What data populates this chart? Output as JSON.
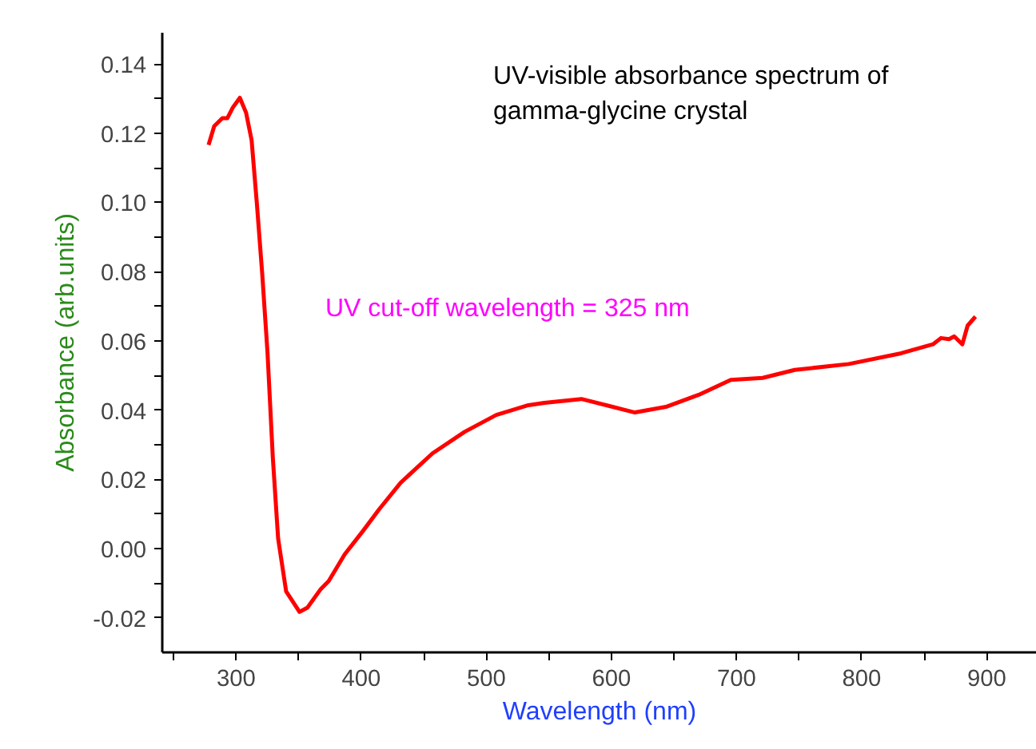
{
  "chart_data": {
    "type": "line",
    "title": "UV-visible absorbance spectrum of\ngamma-glycine crystal",
    "xlabel": "Wavelength (nm)",
    "ylabel": "Absorbance (arb.units)",
    "annotations": [
      "UV cut-off wavelength = 325 nm"
    ],
    "x": [
      278.0,
      282.5,
      289.0,
      293.0,
      297.4,
      303.0,
      308.0,
      312.4,
      316.6,
      320.8,
      325.1,
      329.4,
      333.6,
      340.0,
      350.7,
      357.0,
      367.7,
      374.0,
      386.8,
      401.7,
      414.5,
      431.5,
      457.0,
      482.6,
      508.0,
      533.6,
      546.4,
      576.0,
      618.8,
      644.3,
      669.8,
      695.4,
      720.9,
      746.5,
      789.7,
      831.5,
      857.0,
      863.4,
      869.8,
      874.0,
      880.5,
      884.7,
      891.0
    ],
    "series": [
      {
        "color": "#ff0000",
        "values": [
          0.1166,
          0.122,
          0.1243,
          0.1243,
          0.1274,
          0.1302,
          0.1259,
          0.118,
          0.0997,
          0.0798,
          0.0567,
          0.026,
          0.0029,
          -0.0124,
          -0.0183,
          -0.0171,
          -0.0117,
          -0.0094,
          -0.0017,
          0.0052,
          0.0114,
          0.019,
          0.0275,
          0.0337,
          0.0386,
          0.0414,
          0.0421,
          0.0432,
          0.0393,
          0.041,
          0.0444,
          0.0487,
          0.0493,
          0.0516,
          0.0533,
          0.0564,
          0.059,
          0.0608,
          0.0605,
          0.0613,
          0.059,
          0.0644,
          0.067
        ]
      }
    ],
    "xlim": [
      241,
      940
    ],
    "ylim": [
      -0.03,
      0.149
    ],
    "xticks": [
      {
        "value": 250,
        "label": null
      },
      300,
      {
        "value": 350,
        "label": null
      },
      400,
      {
        "value": 450,
        "label": null
      },
      500,
      {
        "value": 550,
        "label": null
      },
      600,
      {
        "value": 650,
        "label": null
      },
      700,
      {
        "value": 750,
        "label": null
      },
      800,
      {
        "value": 850,
        "label": null
      },
      900
    ],
    "yticks": [
      {
        "value": -0.02,
        "label": "-0.02"
      },
      {
        "value": -0.01,
        "label": null
      },
      {
        "value": 0,
        "label": "0.00"
      },
      {
        "value": 0.01,
        "label": null
      },
      0.02,
      {
        "value": 0.03,
        "label": null
      },
      0.04,
      {
        "value": 0.05,
        "label": null
      },
      0.06,
      {
        "value": 0.07,
        "label": null
      },
      0.08,
      {
        "value": 0.09,
        "label": null
      },
      {
        "value": 0.1,
        "label": "0.10"
      },
      {
        "value": 0.11,
        "label": null
      },
      0.12,
      {
        "value": 0.13,
        "label": null
      },
      0.14
    ],
    "grid": false,
    "marker": "none",
    "line_style": "solid"
  }
}
